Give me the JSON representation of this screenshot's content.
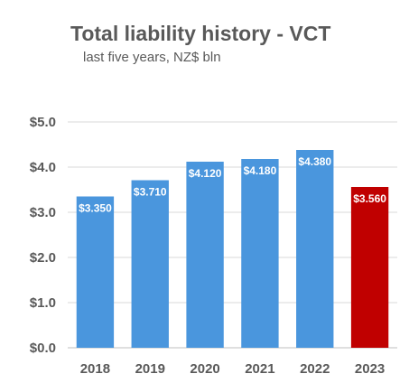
{
  "chart_data": {
    "type": "bar",
    "title": "Total liability history - VCT",
    "subtitle": "last five years, NZ$ bln",
    "xlabel": "",
    "ylabel": "",
    "categories": [
      "2018",
      "2019",
      "2020",
      "2021",
      "2022",
      "2023"
    ],
    "values": [
      3.35,
      3.71,
      4.12,
      4.18,
      4.38,
      3.56
    ],
    "data_labels": [
      "$3.350",
      "$3.710",
      "$4.120",
      "$4.180",
      "$4.380",
      "$3.560"
    ],
    "bar_colors": [
      "#4a96dd",
      "#4a96dd",
      "#4a96dd",
      "#4a96dd",
      "#4a96dd",
      "#c00000"
    ],
    "ylim": [
      0,
      5
    ],
    "yticks": [
      {
        "value": 0,
        "label": "$0.0"
      },
      {
        "value": 1,
        "label": "$1.0"
      },
      {
        "value": 2,
        "label": "$2.0"
      },
      {
        "value": 3,
        "label": "$3.0"
      },
      {
        "value": 4,
        "label": "$4.0"
      },
      {
        "value": 5,
        "label": "$5.0"
      }
    ],
    "grid": true,
    "gridline_color": "#d9d9d9",
    "axis_line_color": "#bfbfbf"
  }
}
